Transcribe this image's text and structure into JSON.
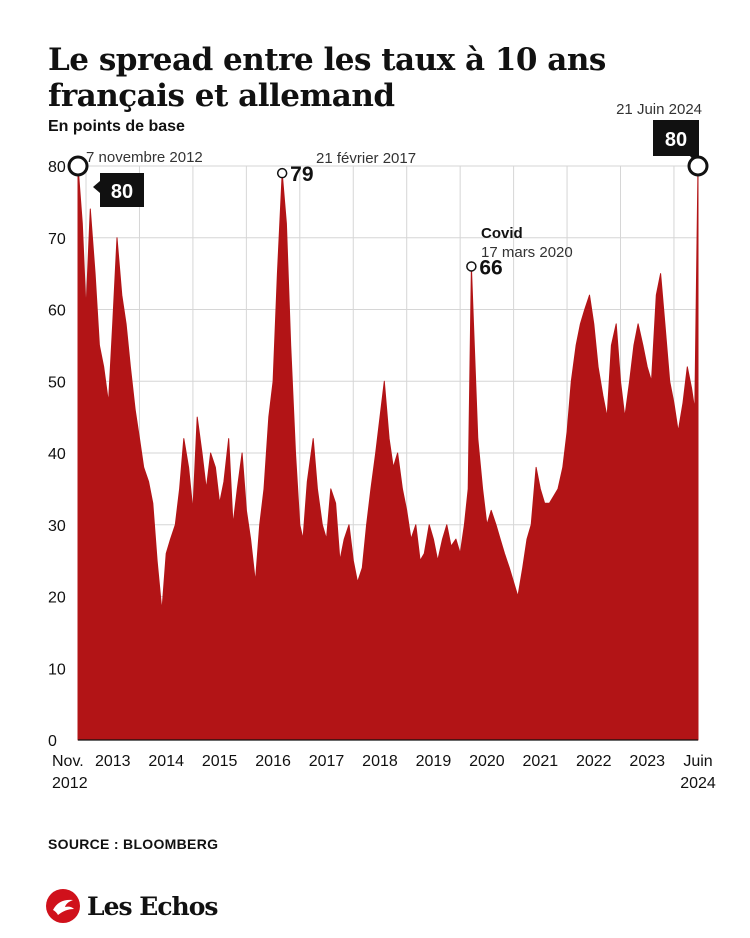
{
  "chart_data": {
    "type": "area",
    "title": "Le spread entre les taux à 10 ans français et allemand",
    "subtitle": "En points de base",
    "source": "SOURCE : BLOOMBERG",
    "color": "#b21416",
    "ylim": [
      0,
      80
    ],
    "yticks": [
      "0",
      "10",
      "20",
      "30",
      "40",
      "50",
      "60",
      "70",
      "80"
    ],
    "xlim": [
      2012.85,
      2024.45
    ],
    "xticks": [
      {
        "x": 2012.85,
        "line1": "Nov.",
        "line2": "2012"
      },
      {
        "x": 2013.5,
        "line1": "2013",
        "line2": ""
      },
      {
        "x": 2014.5,
        "line1": "2014",
        "line2": ""
      },
      {
        "x": 2015.5,
        "line1": "2015",
        "line2": ""
      },
      {
        "x": 2016.5,
        "line1": "2016",
        "line2": ""
      },
      {
        "x": 2017.5,
        "line1": "2017",
        "line2": ""
      },
      {
        "x": 2018.5,
        "line1": "2018",
        "line2": ""
      },
      {
        "x": 2019.5,
        "line1": "2019",
        "line2": ""
      },
      {
        "x": 2020.5,
        "line1": "2020",
        "line2": ""
      },
      {
        "x": 2021.5,
        "line1": "2021",
        "line2": ""
      },
      {
        "x": 2022.5,
        "line1": "2022",
        "line2": ""
      },
      {
        "x": 2023.5,
        "line1": "2023",
        "line2": ""
      },
      {
        "x": 2024.45,
        "line1": "Juin",
        "line2": "2024"
      }
    ],
    "x": [
      2012.85,
      2012.93,
      2013.0,
      2013.08,
      2013.17,
      2013.25,
      2013.33,
      2013.42,
      2013.5,
      2013.58,
      2013.67,
      2013.75,
      2013.83,
      2013.92,
      2014.0,
      2014.08,
      2014.17,
      2014.25,
      2014.33,
      2014.42,
      2014.5,
      2014.58,
      2014.67,
      2014.75,
      2014.83,
      2014.92,
      2015.0,
      2015.08,
      2015.17,
      2015.25,
      2015.33,
      2015.42,
      2015.5,
      2015.58,
      2015.67,
      2015.75,
      2015.83,
      2015.92,
      2016.0,
      2016.08,
      2016.17,
      2016.25,
      2016.33,
      2016.42,
      2016.5,
      2016.58,
      2016.67,
      2016.75,
      2016.83,
      2016.92,
      2017.0,
      2017.06,
      2017.14,
      2017.25,
      2017.33,
      2017.42,
      2017.5,
      2017.58,
      2017.67,
      2017.75,
      2017.83,
      2017.92,
      2018.0,
      2018.08,
      2018.17,
      2018.25,
      2018.33,
      2018.42,
      2018.5,
      2018.58,
      2018.67,
      2018.75,
      2018.83,
      2018.92,
      2019.0,
      2019.08,
      2019.17,
      2019.25,
      2019.33,
      2019.42,
      2019.5,
      2019.58,
      2019.67,
      2019.75,
      2019.83,
      2019.92,
      2020.0,
      2020.08,
      2020.15,
      2020.21,
      2020.25,
      2020.33,
      2020.42,
      2020.5,
      2020.58,
      2020.67,
      2020.75,
      2020.83,
      2020.92,
      2021.0,
      2021.08,
      2021.17,
      2021.25,
      2021.33,
      2021.42,
      2021.5,
      2021.58,
      2021.67,
      2021.75,
      2021.83,
      2021.92,
      2022.0,
      2022.08,
      2022.17,
      2022.25,
      2022.33,
      2022.42,
      2022.5,
      2022.58,
      2022.67,
      2022.75,
      2022.83,
      2022.92,
      2023.0,
      2023.08,
      2023.17,
      2023.25,
      2023.33,
      2023.42,
      2023.5,
      2023.58,
      2023.67,
      2023.75,
      2023.83,
      2023.92,
      2024.0,
      2024.08,
      2024.17,
      2024.25,
      2024.33,
      2024.39,
      2024.45
    ],
    "y": [
      80,
      72,
      60,
      74,
      65,
      55,
      52,
      47,
      58,
      70,
      62,
      58,
      52,
      46,
      42,
      38,
      36,
      33,
      25,
      18,
      26,
      28,
      30,
      35,
      42,
      38,
      32,
      45,
      40,
      35,
      40,
      38,
      33,
      36,
      42,
      30,
      35,
      40,
      32,
      28,
      22,
      30,
      35,
      45,
      50,
      65,
      79,
      72,
      55,
      40,
      30,
      28,
      36,
      42,
      35,
      30,
      28,
      35,
      33,
      25,
      28,
      30,
      25,
      22,
      24,
      30,
      35,
      40,
      45,
      50,
      42,
      38,
      40,
      35,
      32,
      28,
      30,
      25,
      26,
      30,
      28,
      25,
      28,
      30,
      27,
      28,
      26,
      30,
      35,
      66,
      58,
      42,
      35,
      30,
      32,
      30,
      28,
      26,
      24,
      22,
      20,
      24,
      28,
      30,
      38,
      35,
      33,
      33,
      34,
      35,
      38,
      43,
      50,
      55,
      58,
      60,
      62,
      58,
      52,
      48,
      45,
      55,
      58,
      50,
      45,
      50,
      55,
      58,
      55,
      52,
      50,
      62,
      65,
      58,
      50,
      47,
      43,
      47,
      52,
      49,
      46,
      80
    ],
    "annotations": [
      {
        "date": "7 novembre 2012",
        "value": "80",
        "x": 2012.85,
        "y": 80,
        "style": "box"
      },
      {
        "date": "21 février 2017",
        "value": "79",
        "x": 2016.67,
        "y": 79,
        "style": "plain"
      },
      {
        "date": "17 mars 2020",
        "label": "Covid",
        "value": "66",
        "x": 2020.21,
        "y": 66,
        "style": "plain"
      },
      {
        "date": "21 Juin 2024",
        "value": "80",
        "x": 2024.45,
        "y": 80,
        "style": "box-top"
      }
    ]
  },
  "brand": {
    "name": "Les Echos",
    "color": "#d0111b"
  }
}
